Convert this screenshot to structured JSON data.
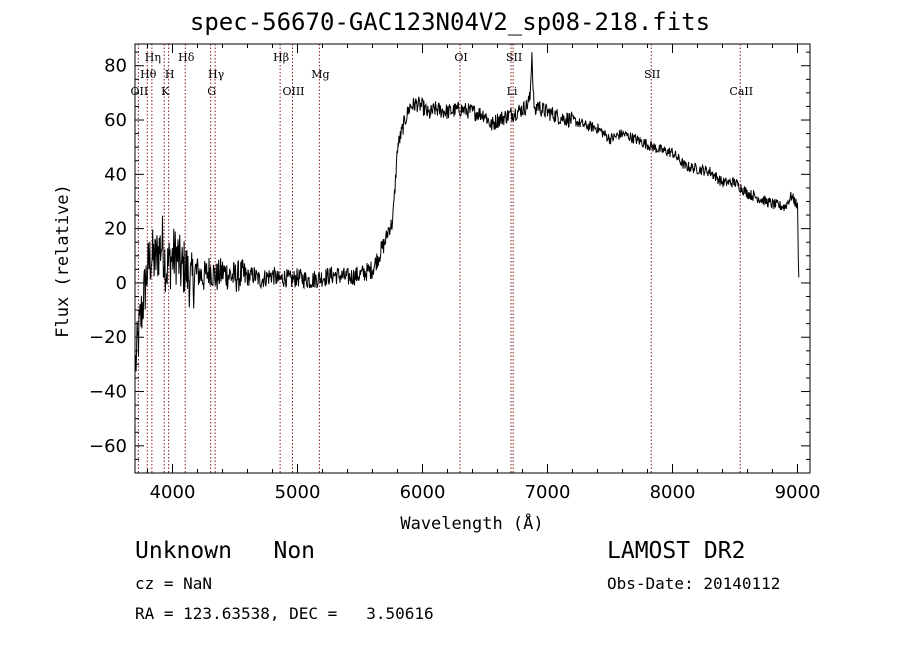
{
  "chart_data": {
    "type": "line",
    "title": "spec-56670-GAC123N04V2_sp08-218.fits",
    "xlabel": "Wavelength (Å)",
    "ylabel": "Flux (relative)",
    "xlim": [
      3700,
      9100
    ],
    "ylim": [
      -70,
      88
    ],
    "xticks": [
      4000,
      5000,
      6000,
      7000,
      8000,
      9000
    ],
    "yticks": [
      -60,
      -40,
      -20,
      0,
      20,
      40,
      60,
      80
    ],
    "grid": false,
    "line_color": "#000000",
    "marker_color": "#8b1a1a",
    "spectrum_x": [
      3705,
      3740,
      3770,
      3800,
      3830,
      3860,
      3890,
      3920,
      3950,
      3980,
      4010,
      4040,
      4070,
      4100,
      4150,
      4200,
      4250,
      4300,
      4350,
      4400,
      4450,
      4500,
      4550,
      4600,
      4650,
      4700,
      4750,
      4800,
      4850,
      4900,
      4950,
      5000,
      5100,
      5200,
      5300,
      5400,
      5500,
      5600,
      5650,
      5700,
      5730,
      5760,
      5780,
      5800,
      5830,
      5860,
      5900,
      5950,
      6000,
      6050,
      6100,
      6200,
      6300,
      6400,
      6500,
      6550,
      6600,
      6650,
      6700,
      6750,
      6800,
      6830,
      6860,
      6875,
      6885,
      6900,
      6920,
      6950,
      7000,
      7100,
      7200,
      7300,
      7400,
      7500,
      7600,
      7700,
      7800,
      7900,
      8000,
      8100,
      8200,
      8300,
      8400,
      8500,
      8600,
      8700,
      8800,
      8900,
      8950,
      8980,
      9000,
      9010
    ],
    "spectrum_y": [
      -30,
      -15,
      -5,
      5,
      10,
      8,
      12,
      15,
      5,
      8,
      10,
      10,
      5,
      6,
      0,
      4,
      2,
      5,
      2,
      4,
      3,
      2,
      3,
      2,
      3,
      1,
      2,
      3,
      1,
      2,
      1,
      2,
      1,
      2,
      3,
      2,
      3,
      5,
      10,
      15,
      20,
      22,
      35,
      50,
      55,
      60,
      65,
      66,
      65,
      62,
      64,
      63,
      64,
      63,
      62,
      58,
      60,
      61,
      62,
      63,
      64,
      65,
      68,
      85,
      70,
      62,
      66,
      64,
      63,
      61,
      60,
      58,
      57,
      53,
      55,
      53,
      51,
      49,
      48,
      43,
      42,
      41,
      37,
      37,
      33,
      31,
      29,
      28,
      32,
      30,
      28,
      2
    ],
    "lines": [
      {
        "label": "OII",
        "x": 3727,
        "row": 3
      },
      {
        "label": "Hθ",
        "x": 3798,
        "row": 2
      },
      {
        "label": "Hη",
        "x": 3835,
        "row": 1
      },
      {
        "label": "K",
        "x": 3934,
        "row": 3
      },
      {
        "label": "H",
        "x": 3969,
        "row": 2
      },
      {
        "label": "Hδ",
        "x": 4102,
        "row": 1
      },
      {
        "label": "G",
        "x": 4305,
        "row": 3
      },
      {
        "label": "Hγ",
        "x": 4341,
        "row": 2
      },
      {
        "label": "Hβ",
        "x": 4861,
        "row": 1
      },
      {
        "label": "OIII",
        "x": 4960,
        "row": 3
      },
      {
        "label": "Mg",
        "x": 5175,
        "row": 2
      },
      {
        "label": "OI",
        "x": 6300,
        "row": 1
      },
      {
        "label": "Li",
        "x": 6708,
        "row": 3
      },
      {
        "label": "SII",
        "x": 6725,
        "row": 1
      },
      {
        "label": "SII",
        "x": 7830,
        "row": 2
      },
      {
        "label": "CaII",
        "x": 8542,
        "row": 3
      }
    ]
  },
  "info": {
    "class_text": "Unknown   Non",
    "cz_text": "cz = NaN",
    "radec_text": "RA = 123.63538, DEC =   3.50616",
    "survey_text": "LAMOST DR2",
    "obsdate_text": "Obs-Date: 20140112"
  }
}
